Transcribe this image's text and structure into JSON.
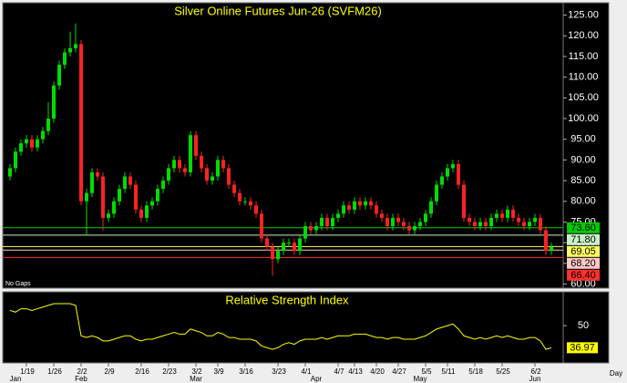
{
  "chart_data": [
    {
      "type": "candlestick",
      "title": "Silver Online Futures Jun-26 (SVFM26)",
      "annotation": "No Gaps",
      "categories": [
        null,
        null,
        null,
        "1/19",
        null,
        null,
        null,
        null,
        "1/26",
        null,
        null,
        null,
        null,
        "2/2",
        null,
        null,
        null,
        null,
        "2/9",
        null,
        null,
        null,
        null,
        null,
        "2/16",
        null,
        null,
        null,
        null,
        "2/23",
        null,
        null,
        null,
        null,
        "3/2",
        null,
        null,
        null,
        "3/9",
        null,
        null,
        null,
        null,
        "3/16",
        null,
        null,
        null,
        null,
        null,
        "3/23",
        null,
        null,
        null,
        null,
        "4/1",
        null,
        null,
        null,
        null,
        null,
        "4/7",
        null,
        null,
        "4/13",
        null,
        null,
        null,
        "4/20",
        null,
        null,
        null,
        "4/27",
        null,
        null,
        null,
        null,
        "5/5",
        null,
        null,
        null,
        "5/11",
        null,
        null,
        null,
        null,
        "5/18",
        null,
        null,
        null,
        null,
        "5/25",
        null,
        null,
        null,
        null,
        null,
        "6/2",
        null,
        null,
        null
      ],
      "months": [
        null,
        "Jan",
        null,
        null,
        null,
        null,
        null,
        null,
        null,
        null,
        null,
        null,
        null,
        "Feb",
        null,
        null,
        null,
        null,
        null,
        null,
        null,
        null,
        null,
        null,
        null,
        null,
        null,
        null,
        null,
        null,
        null,
        null,
        null,
        null,
        "Mar",
        null,
        null,
        null,
        null,
        null,
        null,
        null,
        null,
        null,
        null,
        null,
        null,
        null,
        null,
        null,
        null,
        null,
        null,
        null,
        null,
        null,
        "Apr",
        null,
        null,
        null,
        null,
        null,
        null,
        null,
        null,
        null,
        null,
        null,
        null,
        null,
        null,
        null,
        null,
        null,
        null,
        "May",
        null,
        null,
        null,
        null,
        null,
        null,
        null,
        null,
        null,
        null,
        null,
        null,
        null,
        null,
        null,
        null,
        null,
        null,
        null,
        null,
        "Jun",
        null,
        null,
        null
      ],
      "open": [
        86,
        88,
        92,
        94,
        95,
        93,
        95,
        97,
        100,
        108,
        113,
        116,
        117,
        118,
        80,
        82,
        87,
        86,
        76,
        77,
        80,
        83,
        86,
        84,
        78,
        76,
        79,
        80,
        83,
        85,
        88,
        90,
        88,
        87,
        96,
        91,
        88,
        85,
        86,
        90,
        88,
        84,
        82,
        80,
        80,
        79,
        77,
        71,
        69,
        66,
        68,
        70,
        70,
        68,
        71,
        74,
        73,
        74,
        76,
        74,
        76,
        77,
        79,
        78,
        80,
        79,
        80,
        79,
        77,
        76,
        74,
        76,
        75,
        74,
        73,
        74,
        75,
        77,
        80,
        84,
        86,
        88,
        89,
        84,
        76,
        75,
        74,
        75,
        74,
        76,
        77,
        76,
        78,
        76,
        75,
        74,
        75,
        76,
        73,
        68
      ],
      "high": [
        89,
        93,
        95,
        96,
        96,
        96,
        98,
        104,
        109,
        114,
        117,
        121,
        123,
        119,
        83,
        88,
        88,
        87,
        78,
        81,
        84,
        87,
        87,
        85,
        79,
        80,
        81,
        84,
        86,
        89,
        91,
        91,
        89,
        97,
        97,
        92,
        89,
        87,
        91,
        91,
        89,
        85,
        83,
        81,
        81,
        80,
        78,
        72,
        70,
        69,
        71,
        71,
        71,
        72,
        75,
        75,
        75,
        77,
        77,
        77,
        78,
        80,
        80,
        81,
        81,
        81,
        81,
        80,
        78,
        77,
        77,
        77,
        76,
        75,
        75,
        76,
        78,
        81,
        85,
        87,
        89,
        90,
        90,
        85,
        77,
        76,
        76,
        76,
        77,
        78,
        78,
        79,
        79,
        77,
        76,
        76,
        77,
        77,
        74,
        70
      ],
      "low": [
        85,
        87,
        91,
        93,
        92,
        92,
        94,
        96,
        99,
        107,
        112,
        115,
        116,
        79,
        72,
        81,
        85,
        73,
        75,
        76,
        79,
        82,
        83,
        77,
        75,
        75,
        78,
        79,
        82,
        84,
        87,
        87,
        86,
        86,
        90,
        87,
        84,
        84,
        85,
        87,
        83,
        81,
        79,
        79,
        78,
        76,
        70,
        68,
        62,
        65,
        67,
        69,
        67,
        67,
        70,
        72,
        72,
        73,
        73,
        73,
        75,
        76,
        77,
        77,
        78,
        78,
        78,
        76,
        75,
        73,
        73,
        74,
        73,
        72,
        72,
        73,
        74,
        76,
        79,
        83,
        85,
        87,
        83,
        75,
        74,
        73,
        73,
        73,
        73,
        75,
        75,
        75,
        75,
        74,
        73,
        73,
        74,
        72,
        67,
        67
      ],
      "close": [
        88,
        92,
        94,
        95,
        93,
        95,
        97,
        100,
        108,
        113,
        116,
        117,
        118,
        80,
        82,
        87,
        86,
        76,
        77,
        80,
        83,
        86,
        84,
        78,
        76,
        79,
        80,
        83,
        85,
        88,
        90,
        88,
        87,
        96,
        91,
        88,
        85,
        86,
        90,
        88,
        84,
        82,
        80,
        80,
        79,
        77,
        71,
        69,
        66,
        68,
        70,
        70,
        68,
        71,
        74,
        73,
        74,
        76,
        74,
        76,
        77,
        79,
        78,
        80,
        79,
        80,
        79,
        77,
        76,
        74,
        76,
        75,
        74,
        73,
        74,
        75,
        77,
        80,
        84,
        86,
        88,
        89,
        84,
        76,
        75,
        74,
        75,
        74,
        76,
        77,
        76,
        78,
        76,
        75,
        74,
        75,
        76,
        73,
        68,
        69
      ],
      "up_color": "#00dd00",
      "down_color": "#ff2222",
      "ylim": [
        59,
        128
      ],
      "yticks": [
        {
          "value": 60,
          "label": "60.00"
        },
        {
          "value": 65,
          "label": "65.00"
        },
        {
          "value": 70,
          "label": "70.00"
        },
        {
          "value": 75,
          "label": "75.00"
        },
        {
          "value": 80,
          "label": "80.00"
        },
        {
          "value": 85,
          "label": "85.00"
        },
        {
          "value": 90,
          "label": "90.00"
        },
        {
          "value": 95,
          "label": "95.00"
        },
        {
          "value": 100,
          "label": "100.00"
        },
        {
          "value": 105,
          "label": "105.00"
        },
        {
          "value": 110,
          "label": "110.00"
        },
        {
          "value": 115,
          "label": "115.00"
        },
        {
          "value": 120,
          "label": "120.00"
        },
        {
          "value": 125,
          "label": "125.00"
        }
      ],
      "levels": [
        {
          "value": 73.6,
          "label": "73.60",
          "color": "#00cc00"
        },
        {
          "value": 71.8,
          "label": "71.80",
          "color": "#c8f0c8"
        },
        {
          "value": 69.05,
          "label": "69.05",
          "color": "#ffff60"
        },
        {
          "value": 68.2,
          "label": "68.20",
          "color": "#ffc8c8"
        },
        {
          "value": 66.4,
          "label": "66.40",
          "color": "#ff3030"
        }
      ]
    },
    {
      "type": "line",
      "title": "Relative Strength Index",
      "xlabel": "Day",
      "color": "#ffff00",
      "values": [
        59,
        58,
        60,
        60,
        59,
        60,
        61,
        62,
        63,
        63,
        63,
        63,
        62,
        44,
        43,
        44,
        43,
        41,
        41,
        42,
        43,
        44,
        44,
        42,
        41,
        42,
        42,
        43,
        44,
        45,
        46,
        45,
        45,
        48,
        47,
        46,
        44,
        44,
        46,
        45,
        43,
        43,
        42,
        42,
        42,
        41,
        38,
        37,
        36,
        37,
        39,
        40,
        39,
        41,
        42,
        42,
        42,
        43,
        42,
        43,
        44,
        44,
        44,
        45,
        45,
        45,
        44,
        43,
        43,
        42,
        43,
        43,
        42,
        42,
        42,
        43,
        44,
        46,
        48,
        49,
        50,
        51,
        48,
        44,
        43,
        42,
        43,
        42,
        43,
        44,
        43,
        44,
        43,
        42,
        42,
        43,
        43,
        41,
        36,
        36.97
      ],
      "ylim": [
        28,
        70
      ],
      "yticks": [
        50
      ]
    }
  ]
}
